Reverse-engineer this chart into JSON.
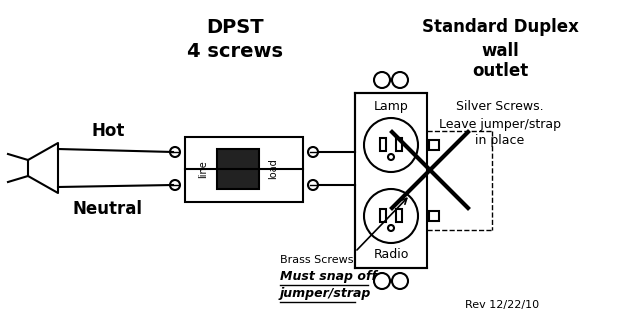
{
  "title_dpst": "DPST",
  "title_screws": "4 screws",
  "label_hot": "Hot",
  "label_neutral": "Neutral",
  "label_lamp": "Lamp",
  "label_radio": "Radio",
  "label_brass": "Brass Screws.",
  "label_must": "Must snap off",
  "label_jumper": "jumper/strap",
  "label_standard": "Standard Duplex",
  "label_wall": "wall",
  "label_outlet": "outlet",
  "label_silver": "Silver Screws.",
  "label_leave": "Leave jumper/strap",
  "label_inplace": "in place",
  "label_rev": "Rev 12/22/10",
  "bg_color": "#ffffff",
  "line_color": "#000000",
  "figsize": [
    6.25,
    3.36
  ],
  "dpi": 100
}
